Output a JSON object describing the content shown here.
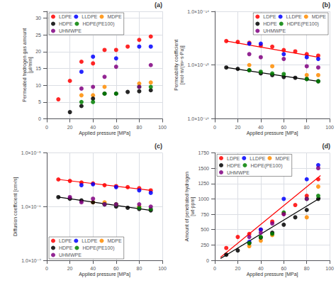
{
  "chart_data": [
    {
      "type": "scatter",
      "title": "(a)",
      "xlabel": "Applied pressure [MPa]",
      "ylabel": "Permeated hydrogen gas amount\n[μl/min]",
      "xlim": [
        0,
        100
      ],
      "xticks": [
        0,
        20,
        40,
        60,
        80,
        100
      ],
      "ylim": [
        0,
        32
      ],
      "yticks": [
        0,
        5,
        10,
        15,
        20,
        25,
        30
      ],
      "grid": true,
      "legend": "upper left",
      "series": [
        {
          "name": "LDPE",
          "color": "#FF0000",
          "marker": "circle",
          "x": [
            10,
            20,
            30,
            40,
            50,
            60,
            70,
            80,
            90
          ],
          "values": [
            5.8,
            11.3,
            17.0,
            16.5,
            20.5,
            20.5,
            21.5,
            23.5,
            24.5
          ]
        },
        {
          "name": "LLDPE",
          "color": "#0000FF",
          "marker": "circle",
          "x": [
            30,
            40,
            60,
            80,
            90
          ],
          "values": [
            14.0,
            18.5,
            18.0,
            21.5,
            21.5
          ]
        },
        {
          "name": "MDPE",
          "color": "#FF8C00",
          "marker": "circle",
          "x": [
            30,
            40,
            50,
            80,
            90
          ],
          "values": [
            7.0,
            7.0,
            9.5,
            10.5,
            10.8
          ]
        },
        {
          "name": "HDPE",
          "color": "#000000",
          "marker": "circle",
          "x": [
            20,
            30,
            40,
            50,
            60,
            70,
            80,
            90
          ],
          "values": [
            2.0,
            3.8,
            6.0,
            7.5,
            7.5,
            8.0,
            8.2,
            8.5
          ]
        },
        {
          "name": "HDPE(PE100)",
          "color": "#008000",
          "marker": "circle",
          "x": [
            30,
            40,
            50,
            60,
            80,
            90
          ],
          "values": [
            5.0,
            5.0,
            7.5,
            7.5,
            9.5,
            9.5
          ]
        },
        {
          "name": "UHMWPE",
          "color": "#800080",
          "marker": "circle",
          "x": [
            30,
            40,
            50,
            60,
            80,
            90
          ],
          "values": [
            9.0,
            9.5,
            12.5,
            15.5,
            9.5,
            16.0
          ]
        }
      ]
    },
    {
      "type": "scatter",
      "title": "(b)",
      "xlabel": "Applied pressure [MPa]",
      "ylabel": "Permeability coefficient\n[mol·m/(m²·s·Pa)]",
      "xlim": [
        0,
        100
      ],
      "xticks": [
        0,
        20,
        40,
        60,
        80,
        100
      ],
      "ylim": [
        1e-16,
        1e-14
      ],
      "yticks": [
        {
          "value": 1e-16,
          "label": "1.0×10⁻¹⁶"
        },
        {
          "value": 1e-15,
          "label": "1.0×10⁻¹⁵"
        },
        {
          "value": 1e-14,
          "label": "1.0×10⁻¹⁴"
        }
      ],
      "log": "y",
      "grid": true,
      "legend": "upper right",
      "series": [
        {
          "name": "LDPE",
          "color": "#FF0000",
          "marker": "circle",
          "x": [
            10,
            20,
            30,
            40,
            50,
            60,
            70,
            80,
            90
          ],
          "values": [
            2.8e-15,
            2.7e-15,
            2.6e-15,
            2.3e-15,
            2.2e-15,
            1.9e-15,
            1.8e-15,
            1.6e-15,
            1.5e-15
          ]
        },
        {
          "name": "LLDPE",
          "color": "#0000FF",
          "marker": "circle",
          "x": [
            30,
            40,
            60,
            80,
            90
          ],
          "values": [
            2.5e-15,
            2.5e-15,
            1.6e-15,
            1.4e-15,
            1.3e-15
          ]
        },
        {
          "name": "MDPE",
          "color": "#FF8C00",
          "marker": "circle",
          "x": [
            30,
            50,
            80,
            90
          ],
          "values": [
            1e-15,
            9.5e-16,
            6.5e-16,
            6.5e-16
          ]
        },
        {
          "name": "HDPE",
          "color": "#000000",
          "marker": "circle",
          "x": [
            10,
            20,
            30,
            40,
            50,
            60,
            70,
            80,
            90
          ],
          "values": [
            9e-16,
            8.5e-16,
            8e-16,
            7e-16,
            6.5e-16,
            6e-16,
            5.8e-16,
            5.5e-16,
            5e-16
          ]
        },
        {
          "name": "HDPE(PE100)",
          "color": "#008000",
          "marker": "circle",
          "x": [
            30,
            40,
            50,
            60,
            80,
            90
          ],
          "values": [
            8e-16,
            7.5e-16,
            7e-16,
            6.8e-16,
            5.5e-16,
            5e-16
          ]
        },
        {
          "name": "UHMWPE",
          "color": "#800080",
          "marker": "circle",
          "x": [
            30,
            40,
            60,
            80,
            90
          ],
          "values": [
            1.6e-15,
            1.4e-15,
            1.3e-15,
            9.5e-16,
            9e-16
          ]
        },
        {
          "name": "LDPE",
          "type": "line",
          "color": "#FF0000",
          "line_style": "solid",
          "x": [
            10,
            90
          ],
          "values": [
            2.8e-15,
            1.4e-15
          ]
        },
        {
          "name": "HDPE",
          "type": "line",
          "color": "#000000",
          "line_style": "solid",
          "x": [
            10,
            90
          ],
          "values": [
            9e-16,
            5e-16
          ]
        }
      ]
    },
    {
      "type": "scatter",
      "title": "(c)",
      "xlabel": "Applied pressure [MPa]",
      "ylabel": "Diffusion coefficient [cm²/s]",
      "xlim": [
        0,
        100
      ],
      "xticks": [
        0,
        20,
        40,
        60,
        80,
        100
      ],
      "ylim": [
        1e-07,
        1e-05
      ],
      "yticks": [
        {
          "value": 1e-07,
          "label": "1.0×10⁻⁷"
        },
        {
          "value": 1e-06,
          "label": "1.0×10⁻⁶"
        },
        {
          "value": 1e-05,
          "label": "1.0×10⁻⁵"
        }
      ],
      "log": "y",
      "grid": true,
      "legend": "lower left",
      "series": [
        {
          "name": "LDPE",
          "color": "#FF0000",
          "marker": "circle",
          "x": [
            10,
            20,
            30,
            40,
            50,
            60,
            70,
            80,
            90
          ],
          "values": [
            3.2e-06,
            3e-06,
            2.8e-06,
            2.7e-06,
            2.5e-06,
            2.4e-06,
            2.3e-06,
            2.2e-06,
            2e-06
          ]
        },
        {
          "name": "LLDPE",
          "color": "#0000FF",
          "marker": "circle",
          "x": [
            30,
            40,
            60,
            80,
            90
          ],
          "values": [
            2.5e-06,
            2.6e-06,
            2.3e-06,
            2e-06,
            1.8e-06
          ]
        },
        {
          "name": "MDPE",
          "color": "#FF8C00",
          "marker": "circle",
          "x": [
            40,
            50,
            60,
            80
          ],
          "values": [
            1.2e-06,
            1.2e-06,
            1.1e-06,
            1e-06
          ]
        },
        {
          "name": "HDPE",
          "color": "#000000",
          "marker": "circle",
          "x": [
            10,
            20,
            30,
            40,
            50,
            60,
            70,
            80,
            90
          ],
          "values": [
            1.5e-06,
            1.4e-06,
            1.3e-06,
            1.2e-06,
            1.1e-06,
            1e-06,
            9.5e-07,
            9e-07,
            8.5e-07
          ]
        },
        {
          "name": "HDPE(PE100)",
          "color": "#008000",
          "marker": "circle",
          "x": [
            50,
            60,
            80,
            90
          ],
          "values": [
            1.1e-06,
            1.1e-06,
            9.5e-07,
            9e-07
          ]
        },
        {
          "name": "UHMWPE",
          "color": "#800080",
          "marker": "circle",
          "x": [
            20,
            30,
            40,
            50,
            60,
            80,
            90
          ],
          "values": [
            1.5e-06,
            1.2e-06,
            1.4e-06,
            1.1e-06,
            1.1e-06,
            1.1e-06,
            1e-06
          ]
        },
        {
          "name": "LDPE",
          "type": "line",
          "color": "#FF0000",
          "line_style": "solid",
          "x": [
            10,
            90
          ],
          "values": [
            3.2e-06,
            2e-06
          ]
        },
        {
          "name": "HDPE",
          "type": "line",
          "color": "#000000",
          "line_style": "solid",
          "x": [
            10,
            90
          ],
          "values": [
            1.5e-06,
            8.5e-07
          ]
        }
      ]
    },
    {
      "type": "scatter",
      "title": "(d)",
      "xlabel": "Applied pressure [MPa]",
      "ylabel": "Amount of penetrated hydrogen\n[wt·ppm]",
      "xlim": [
        0,
        100
      ],
      "xticks": [
        0,
        20,
        40,
        60,
        80,
        100
      ],
      "ylim": [
        0,
        1750
      ],
      "yticks": [
        0,
        250,
        500,
        750,
        1000,
        1250,
        1500,
        1750
      ],
      "grid": true,
      "legend": "upper left",
      "series": [
        {
          "name": "LDPE",
          "color": "#FF0000",
          "marker": "circle",
          "x": [
            10,
            20,
            30,
            40,
            50,
            60,
            70,
            80,
            90
          ],
          "values": [
            200,
            380,
            430,
            500,
            630,
            760,
            900,
            1050,
            1320
          ]
        },
        {
          "name": "LLDPE",
          "color": "#0000FF",
          "marker": "circle",
          "x": [
            30,
            40,
            60,
            80,
            90
          ],
          "values": [
            300,
            500,
            1000,
            1320,
            1550
          ]
        },
        {
          "name": "MDPE",
          "color": "#FF8C00",
          "marker": "circle",
          "x": [
            30,
            40,
            50,
            80,
            90
          ],
          "values": [
            230,
            320,
            410,
            700,
            1200
          ]
        },
        {
          "name": "HDPE",
          "color": "#000000",
          "marker": "circle",
          "x": [
            10,
            20,
            30,
            40,
            50,
            60,
            70,
            80,
            90
          ],
          "values": [
            90,
            160,
            280,
            370,
            450,
            580,
            700,
            820,
            1000
          ]
        },
        {
          "name": "HDPE(PE100)",
          "color": "#008000",
          "marker": "circle",
          "x": [
            30,
            40,
            50,
            60,
            80,
            90
          ],
          "values": [
            280,
            380,
            430,
            780,
            1000,
            1050
          ]
        },
        {
          "name": "UHMWPE",
          "color": "#800080",
          "marker": "circle",
          "x": [
            30,
            40,
            50,
            60,
            80,
            90
          ],
          "values": [
            380,
            450,
            600,
            750,
            1000,
            1500
          ]
        },
        {
          "name": "LDPE",
          "type": "line",
          "color": "#FF0000",
          "line_style": "solid",
          "x": [
            5,
            92
          ],
          "values": [
            50,
            1380
          ]
        },
        {
          "name": "HDPE",
          "type": "line",
          "color": "#000000",
          "line_style": "solid",
          "x": [
            5,
            92
          ],
          "values": [
            30,
            1020
          ]
        }
      ]
    }
  ]
}
